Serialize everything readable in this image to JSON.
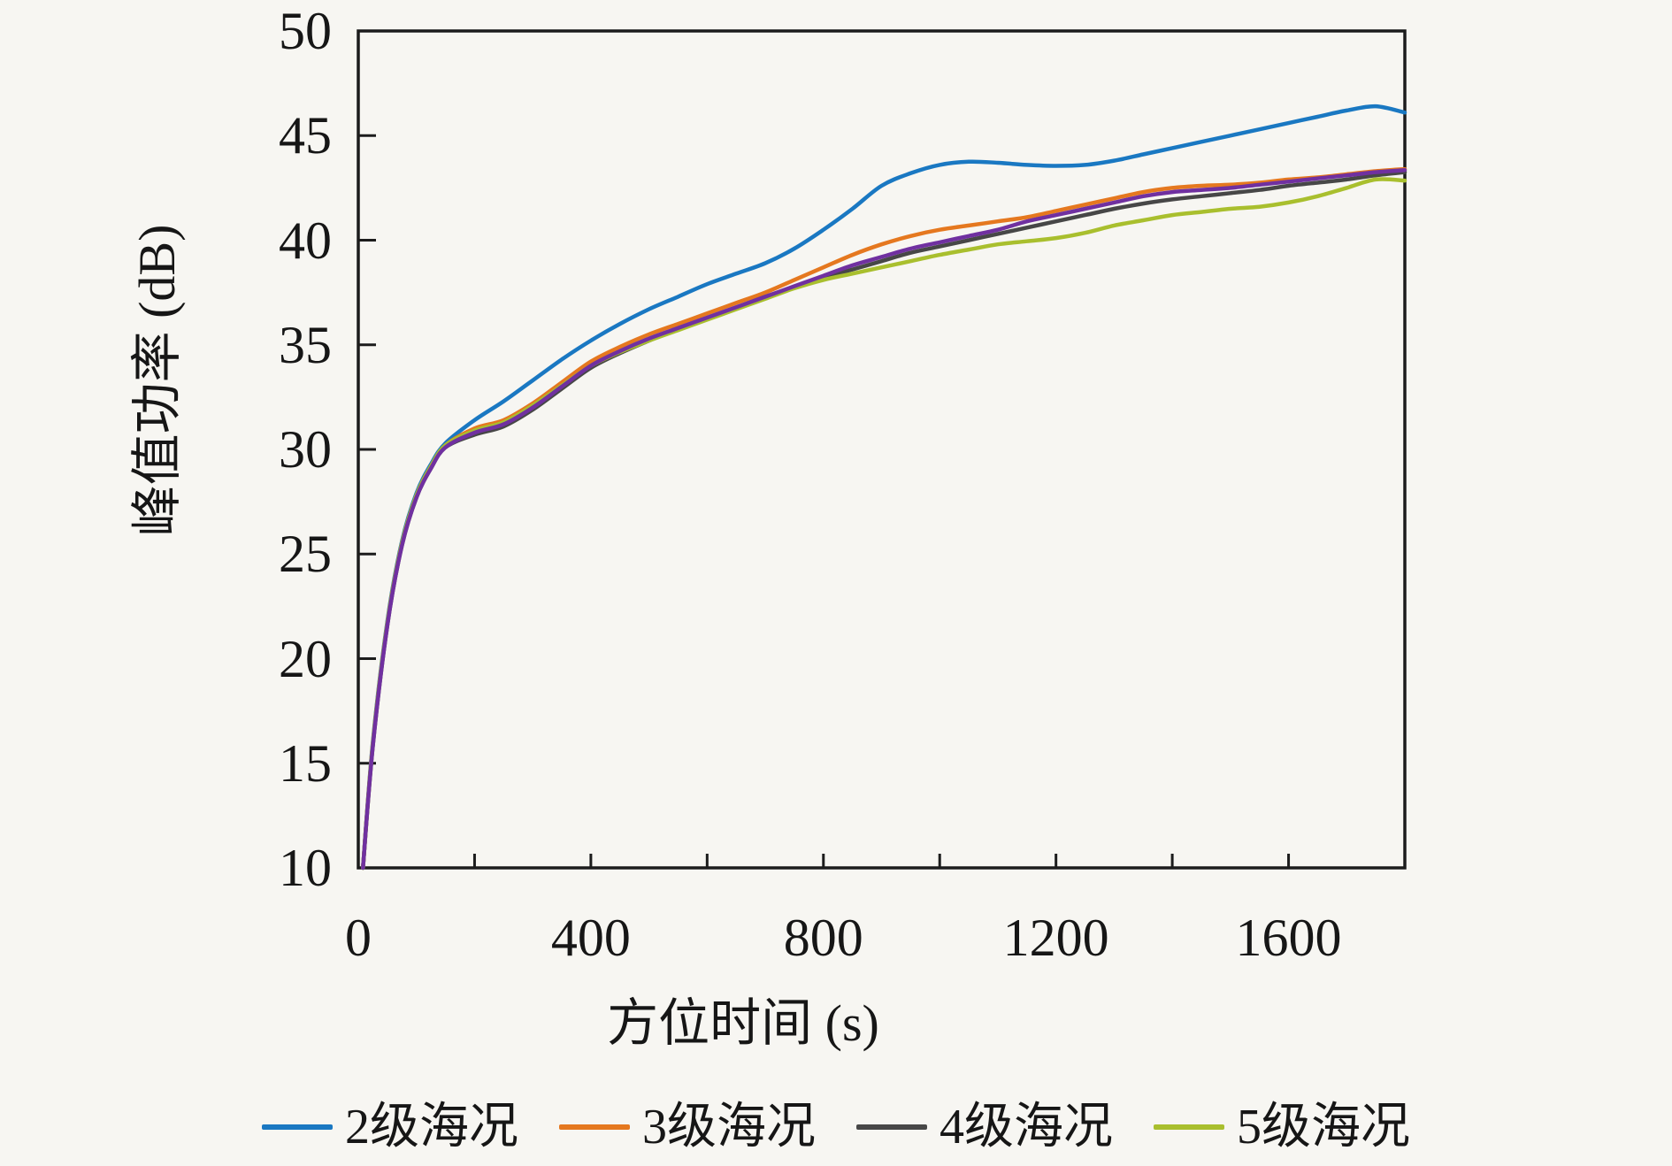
{
  "figure": {
    "background": "#f7f6f2",
    "axis_color": "#1c1c1c",
    "text_color": "#161616"
  },
  "chart_data": {
    "type": "line",
    "title": "",
    "xlabel": "方位时间 (s)",
    "ylabel": "峰值功率 (dB)",
    "xlim": [
      0,
      1800
    ],
    "ylim": [
      10,
      50
    ],
    "grid": false,
    "legend_position": "bottom",
    "x_tick_values": [
      0,
      400,
      800,
      1200,
      1600
    ],
    "x_tick_labels": [
      "0",
      "400",
      "800",
      "1200",
      "1600"
    ],
    "x_minor_tick_values": [
      200,
      400,
      600,
      800,
      1000,
      1200,
      1400,
      1600
    ],
    "y_tick_values": [
      50,
      45,
      40,
      35,
      30,
      25,
      20,
      15,
      10
    ],
    "y_tick_labels": [
      "50",
      "45",
      "40",
      "35",
      "30",
      "25",
      "20",
      "15",
      "10"
    ],
    "x": [
      8,
      25,
      50,
      75,
      100,
      125,
      150,
      200,
      250,
      300,
      350,
      400,
      450,
      500,
      550,
      600,
      650,
      700,
      750,
      800,
      850,
      900,
      950,
      1000,
      1050,
      1100,
      1150,
      1200,
      1250,
      1300,
      1350,
      1400,
      1450,
      1500,
      1550,
      1600,
      1650,
      1700,
      1750,
      1800
    ],
    "series": [
      {
        "name": "2级海况",
        "color": "#1a78c2",
        "in_legend": true,
        "values": [
          10,
          16.0,
          21.8,
          25.6,
          27.9,
          29.3,
          30.3,
          31.4,
          32.3,
          33.3,
          34.3,
          35.2,
          36.0,
          36.7,
          37.3,
          37.9,
          38.4,
          38.9,
          39.6,
          40.5,
          41.5,
          42.6,
          43.2,
          43.6,
          43.75,
          43.7,
          43.6,
          43.55,
          43.6,
          43.8,
          44.1,
          44.4,
          44.7,
          45.0,
          45.3,
          45.6,
          45.9,
          46.2,
          46.4,
          46.1
        ]
      },
      {
        "name": "3级海况",
        "color": "#e5781f",
        "in_legend": true,
        "values": [
          10,
          15.9,
          21.7,
          25.5,
          27.8,
          29.2,
          30.2,
          31.0,
          31.4,
          32.2,
          33.2,
          34.2,
          34.9,
          35.5,
          36.0,
          36.5,
          37.0,
          37.5,
          38.1,
          38.7,
          39.3,
          39.8,
          40.2,
          40.5,
          40.7,
          40.9,
          41.1,
          41.4,
          41.7,
          42.0,
          42.3,
          42.5,
          42.6,
          42.65,
          42.75,
          42.9,
          43.0,
          43.15,
          43.3,
          43.4
        ]
      },
      {
        "name": "4级海况",
        "color": "#474747",
        "in_legend": true,
        "values": [
          10,
          15.8,
          21.6,
          25.4,
          27.7,
          29.1,
          30.1,
          30.7,
          31.1,
          31.9,
          32.9,
          33.9,
          34.6,
          35.2,
          35.75,
          36.25,
          36.75,
          37.3,
          37.75,
          38.2,
          38.6,
          39.0,
          39.4,
          39.7,
          40.0,
          40.3,
          40.6,
          40.9,
          41.2,
          41.5,
          41.75,
          41.95,
          42.1,
          42.25,
          42.4,
          42.6,
          42.75,
          42.9,
          43.1,
          43.25
        ]
      },
      {
        "name": "5级海况",
        "color": "#a9bf2e",
        "in_legend": true,
        "values": [
          10,
          15.9,
          21.7,
          25.5,
          27.8,
          29.2,
          30.2,
          30.9,
          31.3,
          32.1,
          33.05,
          34.0,
          34.65,
          35.2,
          35.7,
          36.2,
          36.7,
          37.2,
          37.7,
          38.1,
          38.4,
          38.7,
          39.0,
          39.3,
          39.55,
          39.8,
          39.95,
          40.1,
          40.35,
          40.7,
          40.95,
          41.2,
          41.35,
          41.5,
          41.6,
          41.8,
          42.1,
          42.5,
          42.9,
          42.85
        ]
      },
      {
        "name": "",
        "color": "#7030a0",
        "in_legend": false,
        "values": [
          10,
          15.8,
          21.6,
          25.4,
          27.7,
          29.1,
          30.1,
          30.8,
          31.2,
          32.0,
          33.0,
          34.0,
          34.7,
          35.3,
          35.8,
          36.3,
          36.8,
          37.3,
          37.8,
          38.3,
          38.8,
          39.2,
          39.6,
          39.9,
          40.2,
          40.5,
          40.9,
          41.2,
          41.5,
          41.8,
          42.1,
          42.3,
          42.4,
          42.5,
          42.65,
          42.8,
          42.95,
          43.1,
          43.25,
          43.35
        ]
      }
    ],
    "legend": [
      "2级海况",
      "3级海况",
      "4级海况",
      "5级海况"
    ]
  }
}
